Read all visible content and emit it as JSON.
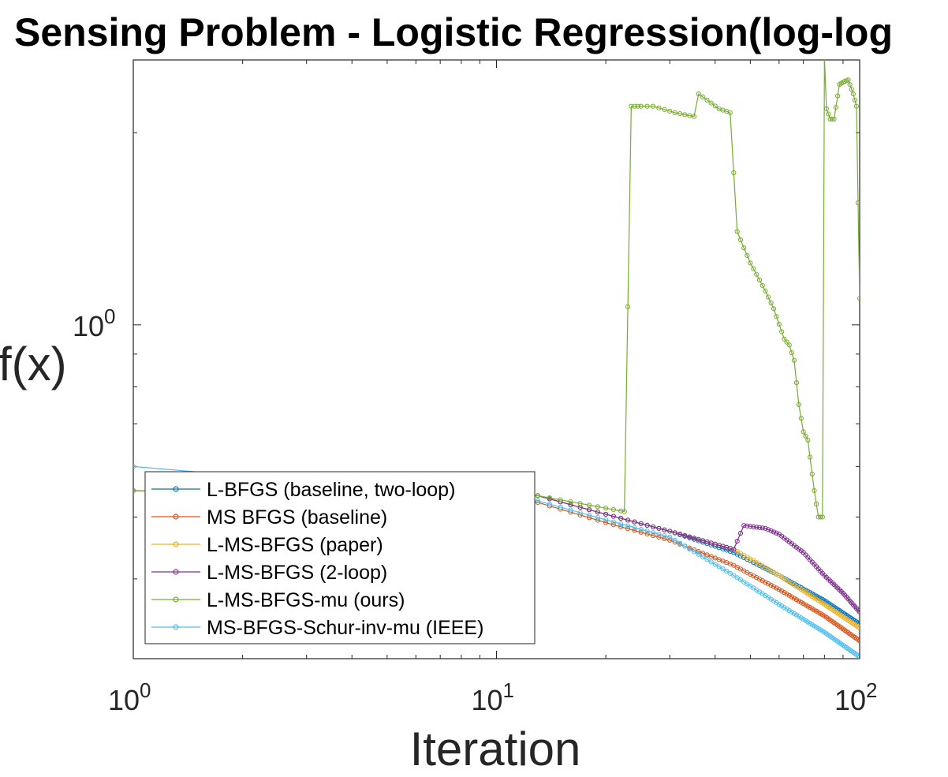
{
  "chart_data": {
    "type": "line",
    "title": "Sensing Problem - Logistic Regression(log-log",
    "xlabel": "Iteration",
    "ylabel": "f(x)",
    "xscale": "log",
    "yscale": "log",
    "xlim": [
      1,
      100
    ],
    "ylim": [
      0.3,
      2.6
    ],
    "xticks": [
      {
        "value": 1,
        "base": "10",
        "exp": "0"
      },
      {
        "value": 10,
        "base": "10",
        "exp": "1"
      },
      {
        "value": 100,
        "base": "10",
        "exp": "2"
      }
    ],
    "yticks": [
      {
        "value": 1,
        "base": "10",
        "exp": "0"
      }
    ],
    "legend_position": "bottom-left",
    "grid": false,
    "series": [
      {
        "name": "L-BFGS (baseline, two-loop)",
        "color": "#0072BD",
        "x": [
          1,
          13,
          20,
          30,
          45,
          60,
          80,
          100
        ],
        "y": [
          0.55,
          0.54,
          0.505,
          0.475,
          0.44,
          0.405,
          0.37,
          0.34
        ]
      },
      {
        "name": "MS BFGS (baseline)",
        "color": "#D95319",
        "x": [
          1,
          13,
          20,
          30,
          45,
          60,
          80,
          100
        ],
        "y": [
          0.55,
          0.527,
          0.49,
          0.46,
          0.42,
          0.385,
          0.35,
          0.32
        ]
      },
      {
        "name": "L-MS-BFGS (paper)",
        "color": "#EDB120",
        "x": [
          1,
          13,
          20,
          30,
          45,
          60,
          80,
          100
        ],
        "y": [
          0.55,
          0.54,
          0.505,
          0.475,
          0.445,
          0.405,
          0.365,
          0.335
        ]
      },
      {
        "name": "L-MS-BFGS (2-loop)",
        "color": "#7E2F8E",
        "x": [
          1,
          13,
          20,
          30,
          45,
          48,
          55,
          60,
          70,
          80,
          90,
          100
        ],
        "y": [
          0.55,
          0.54,
          0.505,
          0.475,
          0.445,
          0.485,
          0.48,
          0.47,
          0.44,
          0.405,
          0.38,
          0.355
        ]
      },
      {
        "name": "L-MS-BFGS-mu (ours)",
        "color": "#77AC30",
        "x": [
          1,
          13,
          22.5,
          23.5,
          24.5,
          27,
          31,
          35,
          36,
          38,
          41,
          44,
          46,
          48,
          50,
          52,
          55,
          58,
          62,
          64,
          66,
          68,
          70,
          72,
          75,
          77,
          79,
          80,
          81,
          83,
          85,
          88,
          90,
          93,
          96,
          98,
          100
        ],
        "y": [
          0.55,
          0.54,
          0.51,
          2.2,
          2.2,
          2.2,
          2.15,
          2.12,
          2.3,
          2.25,
          2.18,
          2.15,
          1.4,
          1.32,
          1.25,
          1.2,
          1.13,
          1.06,
          0.95,
          0.93,
          0.88,
          0.75,
          0.68,
          0.66,
          0.55,
          0.5,
          0.5,
          2.62,
          2.18,
          2.1,
          2.1,
          2.38,
          2.4,
          2.42,
          2.3,
          2.2,
          1.1
        ]
      },
      {
        "name": "MS-BFGS-Schur-inv-mu (IEEE)",
        "color": "#4DBEEE",
        "x": [
          1,
          13,
          20,
          30,
          45,
          60,
          80,
          100
        ],
        "y": [
          0.6,
          0.53,
          0.495,
          0.465,
          0.405,
          0.365,
          0.33,
          0.302
        ]
      }
    ]
  }
}
